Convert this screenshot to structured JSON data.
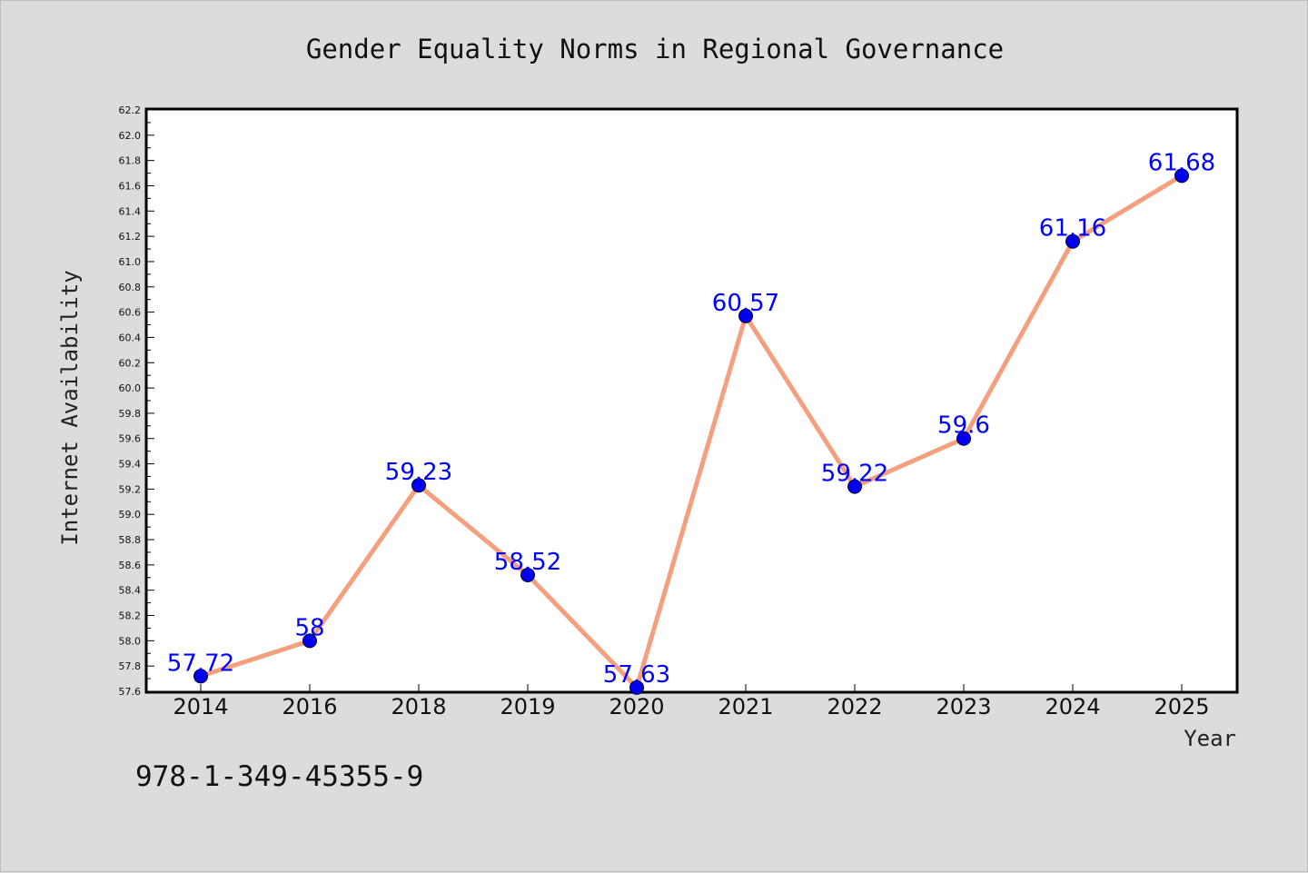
{
  "chart_data": {
    "type": "line",
    "title": "Gender Equality Norms in Regional Governance",
    "xlabel": "Year",
    "ylabel": "Internet Availability",
    "categories": [
      "2014",
      "2016",
      "2018",
      "2019",
      "2020",
      "2021",
      "2022",
      "2023",
      "2024",
      "2025"
    ],
    "series": [
      {
        "values": [
          57.72,
          58,
          59.23,
          58.52,
          57.63,
          60.57,
          59.22,
          59.6,
          61.16,
          61.68
        ],
        "data_labels": [
          "57.72",
          "58",
          "59.23",
          "58.52",
          "57.63",
          "60.57",
          "59.22",
          "59.6",
          "61.16",
          "61.68"
        ]
      }
    ],
    "ylim": [
      57.6,
      62.2
    ],
    "ytick_labels": [
      "57.6",
      "57.8",
      "58.0",
      "58.2",
      "58.4",
      "58.6",
      "58.8",
      "59.0",
      "59.2",
      "59.4",
      "59.6",
      "59.8",
      "60.0",
      "60.2",
      "60.4",
      "60.6",
      "60.8",
      "61.0",
      "61.2",
      "61.4",
      "61.6",
      "61.8",
      "62.0",
      "62.2"
    ],
    "grid": false,
    "line_color": "#f4a07e",
    "marker_color": "#0000ee",
    "label_color": "#0000ff"
  },
  "annotation": "978-1-349-45355-9"
}
